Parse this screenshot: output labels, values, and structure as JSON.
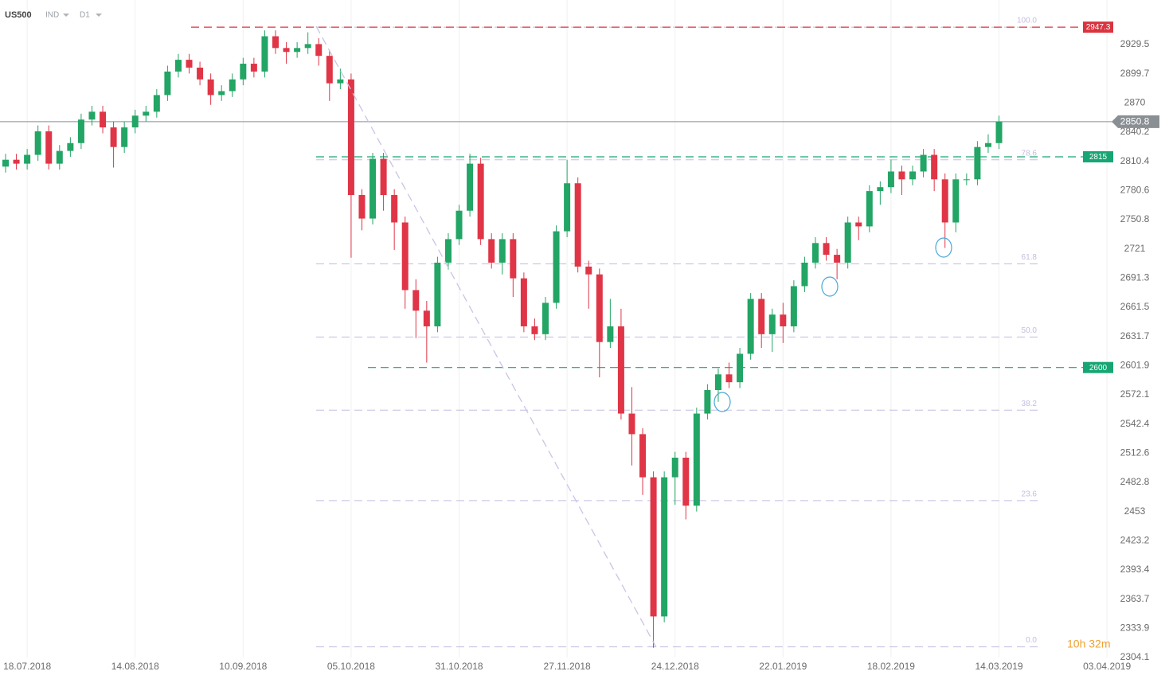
{
  "chart_data": {
    "type": "candlestick",
    "symbol": "US500",
    "instrument_type": "IND",
    "interval": "D1",
    "countdown": "10h 32m",
    "categories": [
      null,
      null,
      "18.07.2018",
      null,
      null,
      null,
      null,
      null,
      null,
      null,
      null,
      null,
      "14.08.2018",
      null,
      null,
      null,
      null,
      null,
      null,
      null,
      null,
      null,
      "10.09.2018",
      null,
      null,
      null,
      null,
      null,
      null,
      null,
      null,
      null,
      "05.10.2018",
      null,
      null,
      null,
      null,
      null,
      null,
      null,
      null,
      null,
      "31.10.2018",
      null,
      null,
      null,
      null,
      null,
      null,
      null,
      null,
      null,
      "27.11.2018",
      null,
      null,
      null,
      null,
      null,
      null,
      null,
      null,
      null,
      "24.12.2018",
      null,
      null,
      null,
      null,
      null,
      null,
      null,
      null,
      null,
      "22.01.2019",
      null,
      null,
      null,
      null,
      null,
      null,
      null,
      null,
      null,
      "18.02.2019",
      null,
      null,
      null,
      null,
      null,
      null,
      null,
      null,
      null,
      "14.03.2019",
      null,
      null,
      null,
      null,
      null,
      null,
      null,
      null,
      null,
      "03.04.2019"
    ],
    "open": [
      2805,
      2812,
      2808,
      2817,
      2841,
      2808,
      2821,
      2829,
      2853,
      2861,
      2845,
      2825,
      2845,
      2857,
      2861,
      2878,
      2902,
      2914,
      2906,
      2894,
      2878,
      2882,
      2894,
      2910,
      2902,
      2938,
      2926,
      2922,
      2926,
      2930,
      2918,
      2890,
      2894,
      2776,
      2752,
      2813,
      2776,
      2748,
      2679,
      2658,
      2642,
      2707,
      2731,
      2760,
      2808,
      2731,
      2707,
      2731,
      2691,
      2642,
      2634,
      2666,
      2739,
      2788,
      2703,
      2695,
      2626,
      2642,
      2553,
      2532,
      2488,
      2346,
      2488,
      2508,
      2459,
      2553,
      2577,
      2593,
      2585,
      2614,
      2670,
      2634,
      2654,
      2642,
      2683,
      2707,
      2727,
      2715,
      2707,
      2748,
      2744,
      2780,
      2784,
      2800,
      2792,
      2800,
      2817,
      2792,
      2748,
      2792,
      2792,
      2825,
      2829,
      null,
      null,
      null,
      null,
      null,
      null,
      null,
      null,
      null,
      null
    ],
    "high": [
      2818,
      2818,
      2823,
      2847,
      2847,
      2827,
      2835,
      2859,
      2867,
      2867,
      2851,
      2851,
      2863,
      2867,
      2884,
      2908,
      2920,
      2920,
      2912,
      2900,
      2888,
      2900,
      2916,
      2916,
      2944,
      2944,
      2932,
      2932,
      2942,
      2936,
      2924,
      2905,
      2900,
      2782,
      2819,
      2819,
      2782,
      2754,
      2690,
      2668,
      2713,
      2737,
      2766,
      2818,
      2814,
      2737,
      2737,
      2737,
      2697,
      2650,
      2672,
      2745,
      2812,
      2794,
      2709,
      2701,
      2670,
      2660,
      2580,
      2538,
      2494,
      2494,
      2514,
      2514,
      2559,
      2583,
      2599,
      2605,
      2620,
      2676,
      2676,
      2660,
      2666,
      2689,
      2713,
      2733,
      2733,
      2721,
      2754,
      2754,
      2786,
      2790,
      2812,
      2806,
      2806,
      2823,
      2823,
      2798,
      2798,
      2798,
      2831,
      2838,
      2857,
      null,
      null,
      null,
      null,
      null,
      null,
      null,
      null,
      null,
      null
    ],
    "low": [
      2799,
      2802,
      2802,
      2811,
      2802,
      2802,
      2815,
      2823,
      2847,
      2839,
      2804,
      2819,
      2839,
      2851,
      2855,
      2872,
      2896,
      2900,
      2888,
      2868,
      2872,
      2876,
      2888,
      2896,
      2896,
      2920,
      2910,
      2916,
      2920,
      2908,
      2872,
      2884,
      2712,
      2740,
      2746,
      2760,
      2720,
      2660,
      2630,
      2605,
      2636,
      2700,
      2725,
      2754,
      2725,
      2701,
      2695,
      2672,
      2636,
      2628,
      2628,
      2660,
      2733,
      2697,
      2660,
      2590,
      2620,
      2547,
      2500,
      2470,
      2314,
      2340,
      2460,
      2445,
      2453,
      2547,
      2565,
      2579,
      2579,
      2608,
      2620,
      2616,
      2625,
      2636,
      2677,
      2701,
      2709,
      2690,
      2701,
      2730,
      2738,
      2766,
      2778,
      2776,
      2786,
      2794,
      2780,
      2722,
      2738,
      2786,
      2786,
      2819,
      2823,
      null,
      null,
      null,
      null,
      null,
      null,
      null,
      null,
      null,
      null
    ],
    "close": [
      2812,
      2808,
      2817,
      2841,
      2808,
      2821,
      2829,
      2853,
      2861,
      2845,
      2825,
      2845,
      2857,
      2861,
      2878,
      2902,
      2914,
      2906,
      2894,
      2878,
      2882,
      2894,
      2910,
      2902,
      2938,
      2926,
      2922,
      2926,
      2930,
      2918,
      2890,
      2894,
      2776,
      2752,
      2813,
      2776,
      2748,
      2679,
      2658,
      2642,
      2707,
      2731,
      2760,
      2808,
      2731,
      2707,
      2731,
      2691,
      2642,
      2634,
      2666,
      2739,
      2788,
      2703,
      2695,
      2626,
      2642,
      2553,
      2532,
      2488,
      2346,
      2488,
      2508,
      2459,
      2553,
      2577,
      2593,
      2585,
      2614,
      2670,
      2634,
      2654,
      2642,
      2683,
      2707,
      2727,
      2715,
      2707,
      2748,
      2744,
      2780,
      2784,
      2800,
      2792,
      2800,
      2817,
      2792,
      2748,
      2792,
      2792,
      2825,
      2829,
      2851,
      null,
      null,
      null,
      null,
      null,
      null,
      null,
      null,
      null,
      null
    ],
    "up_color": "#22a565",
    "down_color": "#e03546",
    "ylim": [
      2304.1,
      2975.0
    ],
    "yticks": [
      2304.1,
      2333.9,
      2363.7,
      2393.4,
      2423.2,
      2453.0,
      2482.8,
      2512.6,
      2542.4,
      2572.1,
      2601.9,
      2631.7,
      2661.5,
      2691.3,
      2721.0,
      2750.8,
      2780.6,
      2810.4,
      2840.2,
      2870.0,
      2899.7,
      2929.5
    ],
    "current_price": 2850.8,
    "current_price_color": "#8a8f94",
    "levels": [
      {
        "value": 2947.3,
        "color": "#d9343f"
      },
      {
        "value": 2815.0,
        "color": "#17a673"
      },
      {
        "value": 2600.0,
        "color": "#17a673"
      }
    ],
    "fib": {
      "high": 2947.3,
      "low": 2315,
      "color": "#c2bde0",
      "levels": [
        {
          "value": 100,
          "label": "100.0"
        },
        78.6,
        61.8,
        {
          "value": 50,
          "label": "50.0"
        },
        38.2,
        23.6,
        {
          "value": 0,
          "label": "0.0"
        }
      ]
    }
  }
}
